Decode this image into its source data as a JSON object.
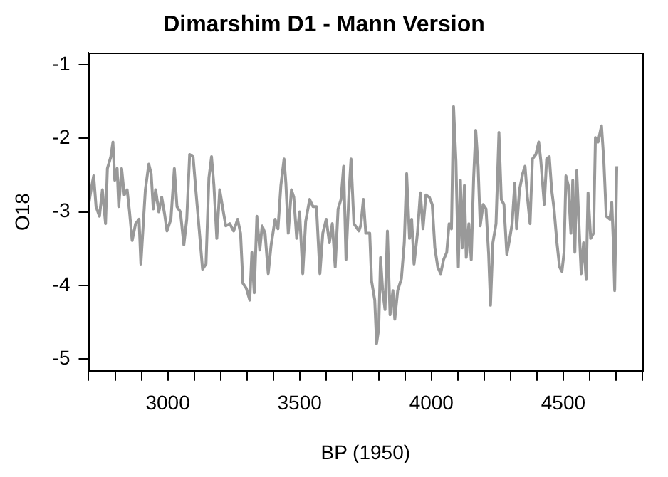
{
  "chart_data": {
    "type": "line",
    "title": "Dimarshim D1 - Mann Version",
    "xlabel": "BP (1950)",
    "ylabel": "O18",
    "x": [
      2700,
      2709,
      2719,
      2728,
      2741,
      2752,
      2764,
      2771,
      2784,
      2792,
      2799,
      2808,
      2814,
      2825,
      2835,
      2846,
      2855,
      2865,
      2878,
      2891,
      2898,
      2906,
      2915,
      2928,
      2937,
      2945,
      2954,
      2966,
      2977,
      2988,
      2997,
      3012,
      3025,
      3035,
      3048,
      3061,
      3072,
      3083,
      3096,
      3108,
      3119,
      3132,
      3145,
      3156,
      3166,
      3175,
      3186,
      3197,
      3209,
      3220,
      3235,
      3250,
      3265,
      3276,
      3285,
      3298,
      3311,
      3319,
      3328,
      3338,
      3349,
      3358,
      3369,
      3381,
      3392,
      3407,
      3418,
      3429,
      3441,
      3448,
      3457,
      3469,
      3478,
      3489,
      3500,
      3512,
      3523,
      3538,
      3551,
      3564,
      3577,
      3588,
      3601,
      3613,
      3624,
      3635,
      3646,
      3657,
      3667,
      3676,
      3687,
      3695,
      3706,
      3725,
      3732,
      3742,
      3751,
      3766,
      3773,
      3785,
      3792,
      3800,
      3807,
      3815,
      3824,
      3833,
      3843,
      3854,
      3861,
      3872,
      3886,
      3897,
      3906,
      3917,
      3925,
      3934,
      3947,
      3958,
      3968,
      3979,
      3992,
      4003,
      4013,
      4024,
      4035,
      4046,
      4058,
      4067,
      4076,
      4084,
      4093,
      4102,
      4110,
      4117,
      4125,
      4132,
      4142,
      4151,
      4160,
      4168,
      4177,
      4185,
      4196,
      4207,
      4217,
      4224,
      4233,
      4245,
      4256,
      4265,
      4275,
      4286,
      4297,
      4306,
      4316,
      4323,
      4334,
      4346,
      4355,
      4364,
      4374,
      4383,
      4396,
      4407,
      4415,
      4428,
      4437,
      4447,
      4456,
      4465,
      4476,
      4486,
      4495,
      4503,
      4510,
      4519,
      4529,
      4536,
      4544,
      4551,
      4561,
      4568,
      4577,
      4587,
      4594,
      4604,
      4615,
      4622,
      4632,
      4645,
      4654,
      4663,
      4677,
      4684,
      4690,
      4695,
      4703
    ],
    "series": [
      {
        "color": "#999999",
        "values": [
          -2.9,
          -2.7,
          -2.51,
          -2.93,
          -3.06,
          -2.7,
          -3.16,
          -2.41,
          -2.25,
          -2.05,
          -2.57,
          -2.41,
          -2.93,
          -2.41,
          -2.77,
          -2.7,
          -3.0,
          -3.39,
          -3.16,
          -3.1,
          -3.71,
          -3.23,
          -2.7,
          -2.35,
          -2.48,
          -2.96,
          -2.7,
          -3.0,
          -2.8,
          -3.03,
          -3.26,
          -3.1,
          -2.41,
          -2.93,
          -3.0,
          -3.45,
          -3.1,
          -2.22,
          -2.25,
          -2.77,
          -3.23,
          -3.78,
          -3.71,
          -2.54,
          -2.25,
          -2.64,
          -3.36,
          -2.7,
          -2.96,
          -3.19,
          -3.16,
          -3.26,
          -3.1,
          -3.29,
          -3.97,
          -4.04,
          -4.2,
          -3.55,
          -4.1,
          -3.06,
          -3.52,
          -3.19,
          -3.29,
          -3.84,
          -3.45,
          -3.1,
          -3.23,
          -2.64,
          -2.28,
          -2.61,
          -3.29,
          -2.7,
          -2.8,
          -3.36,
          -3.0,
          -3.84,
          -3.13,
          -2.83,
          -2.93,
          -2.93,
          -3.84,
          -3.29,
          -3.1,
          -3.42,
          -3.16,
          -3.75,
          -2.96,
          -2.83,
          -2.38,
          -3.65,
          -2.77,
          -2.28,
          -3.16,
          -3.26,
          -3.18,
          -2.83,
          -3.29,
          -3.29,
          -3.94,
          -4.2,
          -4.79,
          -4.59,
          -3.62,
          -4.07,
          -4.33,
          -3.26,
          -4.4,
          -4.07,
          -4.46,
          -4.07,
          -3.91,
          -3.42,
          -2.48,
          -3.36,
          -3.1,
          -3.71,
          -3.29,
          -2.74,
          -3.23,
          -2.77,
          -2.8,
          -2.9,
          -3.49,
          -3.75,
          -3.84,
          -3.65,
          -3.55,
          -3.16,
          -3.23,
          -1.57,
          -2.31,
          -3.75,
          -2.57,
          -3.49,
          -2.64,
          -3.62,
          -3.16,
          -3.65,
          -2.54,
          -1.89,
          -2.38,
          -3.19,
          -2.9,
          -2.96,
          -3.58,
          -4.27,
          -3.42,
          -3.16,
          -1.92,
          -2.83,
          -2.9,
          -3.58,
          -3.36,
          -3.16,
          -2.61,
          -3.23,
          -2.7,
          -2.48,
          -2.38,
          -2.8,
          -3.16,
          -2.28,
          -2.22,
          -2.05,
          -2.31,
          -2.9,
          -2.28,
          -2.25,
          -2.7,
          -2.96,
          -3.42,
          -3.75,
          -3.81,
          -3.55,
          -2.51,
          -2.64,
          -3.29,
          -2.57,
          -3.55,
          -2.44,
          -3.29,
          -3.84,
          -3.42,
          -3.91,
          -2.74,
          -3.36,
          -3.29,
          -1.99,
          -2.05,
          -1.83,
          -2.31,
          -3.06,
          -3.1,
          -2.87,
          -3.42,
          -4.07,
          -2.38
        ]
      }
    ],
    "xlim": [
      2700,
      4800
    ],
    "xticks": [
      {
        "value": 2700,
        "label": null
      },
      {
        "value": 2800,
        "label": null
      },
      {
        "value": 2900,
        "label": null
      },
      3000,
      {
        "value": 3100,
        "label": null
      },
      {
        "value": 3200,
        "label": null
      },
      {
        "value": 3300,
        "label": null
      },
      {
        "value": 3400,
        "label": null
      },
      3500,
      {
        "value": 3600,
        "label": null
      },
      {
        "value": 3700,
        "label": null
      },
      {
        "value": 3800,
        "label": null
      },
      {
        "value": 3900,
        "label": null
      },
      4000,
      {
        "value": 4100,
        "label": null
      },
      {
        "value": 4200,
        "label": null
      },
      {
        "value": 4300,
        "label": null
      },
      {
        "value": 4400,
        "label": null
      },
      4500,
      {
        "value": 4600,
        "label": null
      },
      {
        "value": 4700,
        "label": null
      },
      {
        "value": 4800,
        "label": null
      }
    ],
    "ylim": [
      -5.16,
      -0.84
    ],
    "yticks": [
      -5,
      -4,
      -3,
      -2,
      -1
    ],
    "grid": false,
    "legend": false,
    "marker": "none",
    "line_style": "solid"
  }
}
